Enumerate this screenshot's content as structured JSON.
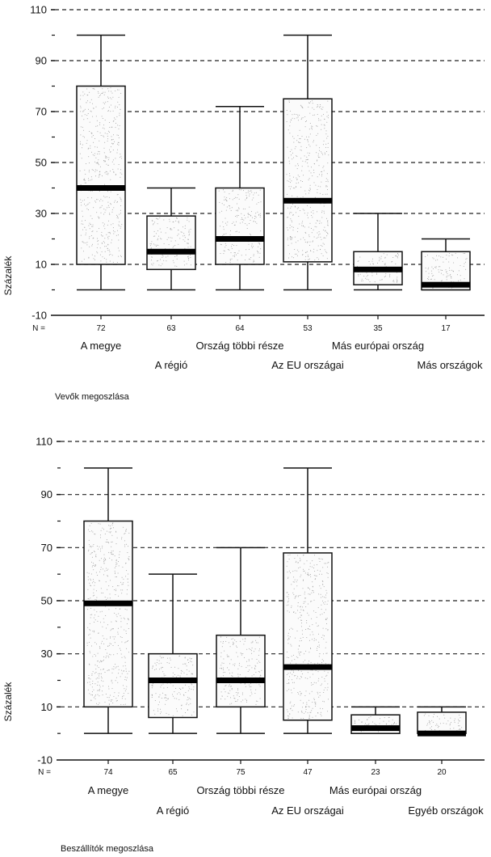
{
  "chart_data": [
    {
      "type": "box",
      "title": "Vevők megoszlása",
      "ylabel": "Százalék",
      "ylim": [
        -10,
        110
      ],
      "yticks": [
        -10,
        10,
        30,
        50,
        70,
        90,
        110
      ],
      "n_prefix": "N =",
      "grid": "dashed horizontal at 10, 30, 50, 70, 90, 110",
      "categories": [
        "A megye",
        "A régió",
        "Ország többi része",
        "Az EU országai",
        "Más európai ország",
        "Más országok"
      ],
      "n": [
        "72",
        "63",
        "64",
        "53",
        "35",
        "17"
      ],
      "boxes": [
        {
          "min": 0,
          "q1": 10,
          "median": 40,
          "q3": 80,
          "max": 100
        },
        {
          "min": 0,
          "q1": 8,
          "median": 15,
          "q3": 29,
          "max": 40
        },
        {
          "min": 0,
          "q1": 10,
          "median": 20,
          "q3": 40,
          "max": 72
        },
        {
          "min": 0,
          "q1": 11,
          "median": 35,
          "q3": 75,
          "max": 100
        },
        {
          "min": 0,
          "q1": 2,
          "median": 8,
          "q3": 15,
          "max": 30
        },
        {
          "min": 0,
          "q1": 0,
          "median": 2,
          "q3": 15,
          "max": 20
        }
      ]
    },
    {
      "type": "box",
      "title": "Beszállítók megoszlása",
      "ylabel": "Százalék",
      "ylim": [
        -10,
        110
      ],
      "yticks": [
        -10,
        10,
        30,
        50,
        70,
        90,
        110
      ],
      "n_prefix": "N =",
      "grid": "dashed horizontal at 10, 30, 50, 70, 90, 110",
      "categories": [
        "A megye",
        "A régió",
        "Ország többi része",
        "Az EU országai",
        "Más európai ország",
        "Egyéb országok"
      ],
      "n": [
        "74",
        "65",
        "75",
        "47",
        "23",
        "20"
      ],
      "boxes": [
        {
          "min": 0,
          "q1": 10,
          "median": 49,
          "q3": 80,
          "max": 100
        },
        {
          "min": 0,
          "q1": 6,
          "median": 20,
          "q3": 30,
          "max": 60
        },
        {
          "min": 0,
          "q1": 10,
          "median": 20,
          "q3": 37,
          "max": 70
        },
        {
          "min": 0,
          "q1": 5,
          "median": 25,
          "q3": 68,
          "max": 100
        },
        {
          "min": 0,
          "q1": 0,
          "median": 2,
          "q3": 7,
          "max": 10
        },
        {
          "min": 0,
          "q1": 0,
          "median": 0,
          "q3": 8,
          "max": 10
        }
      ]
    }
  ]
}
